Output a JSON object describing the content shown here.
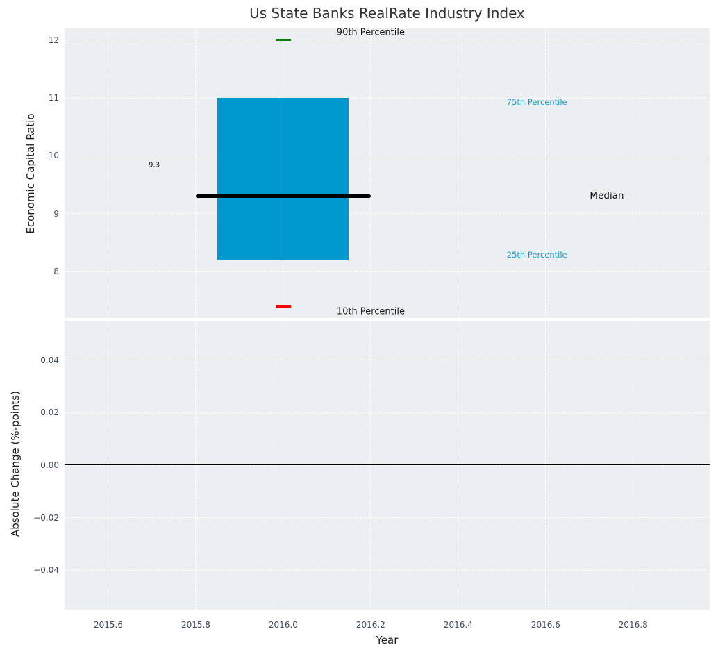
{
  "chart_data": {
    "type": "box",
    "title": "Us State Banks RealRate Industry Index",
    "xlabel": "Year",
    "xlim": [
      2015.5,
      2016.975
    ],
    "x_ticks": [
      {
        "v": 2015.6,
        "label": "2015.6"
      },
      {
        "v": 2015.8,
        "label": "2015.8"
      },
      {
        "v": 2016.0,
        "label": "2016.0"
      },
      {
        "v": 2016.2,
        "label": "2016.2"
      },
      {
        "v": 2016.4,
        "label": "2016.4"
      },
      {
        "v": 2016.6,
        "label": "2016.6"
      },
      {
        "v": 2016.8,
        "label": "2016.8"
      }
    ],
    "colors": {
      "axes_background": "#eceff1",
      "grid": "#ffffff",
      "box_fill": "#0099ce",
      "whisker": "#555555",
      "cap_90th": "#068006",
      "cap_10th": "#f80000",
      "median_line": "#000000",
      "tick_label": "#3d4a5c",
      "percentile_label_blue": "#149bd3",
      "text": "#1a1a1a"
    },
    "top": {
      "ylabel": "Economic Capital Ratio",
      "ylim": [
        7.2,
        12.2
      ],
      "y_ticks": [
        {
          "v": 12,
          "label": "12"
        },
        {
          "v": 11,
          "label": "11"
        },
        {
          "v": 10,
          "label": "10"
        },
        {
          "v": 9,
          "label": "9"
        },
        {
          "v": 8,
          "label": "8"
        }
      ],
      "box": {
        "x": 2016,
        "p10": 7.4,
        "p25": 8.2,
        "median": 9.3,
        "p75": 11.0,
        "p90": 12.0,
        "box_halfwidth": 0.15,
        "median_halfwidth": 0.2,
        "cap_halfwidth": 0.017
      },
      "annotations": [
        {
          "text": "90th Percentile",
          "x": 2016.2,
          "y": 12.13,
          "color": "#1a1a1a",
          "size": 13
        },
        {
          "text": "10th Percentile",
          "x": 2016.2,
          "y": 7.31,
          "color": "#1a1a1a",
          "size": 13
        },
        {
          "text": "75th Percentile",
          "x": 2016.58,
          "y": 10.93,
          "color": "#149bd3",
          "size": 11.5
        },
        {
          "text": "25th Percentile",
          "x": 2016.58,
          "y": 8.29,
          "color": "#149bd3",
          "size": 11.5
        },
        {
          "text": "Median",
          "x": 2016.74,
          "y": 9.31,
          "color": "#111111",
          "size": 13.5
        },
        {
          "text": "9.3",
          "x": 2015.705,
          "y": 9.84,
          "color": "#111111",
          "size": 10
        }
      ]
    },
    "bottom": {
      "ylabel": "Absolute Change (%-points)",
      "ylim": [
        -0.055,
        0.055
      ],
      "y_ticks": [
        {
          "v": 0.04,
          "label": "0.04"
        },
        {
          "v": 0.02,
          "label": "0.02"
        },
        {
          "v": 0.0,
          "label": "0.00"
        },
        {
          "v": -0.02,
          "label": "−0.02"
        },
        {
          "v": -0.04,
          "label": "−0.04"
        }
      ],
      "zero_line": 0.0
    }
  }
}
